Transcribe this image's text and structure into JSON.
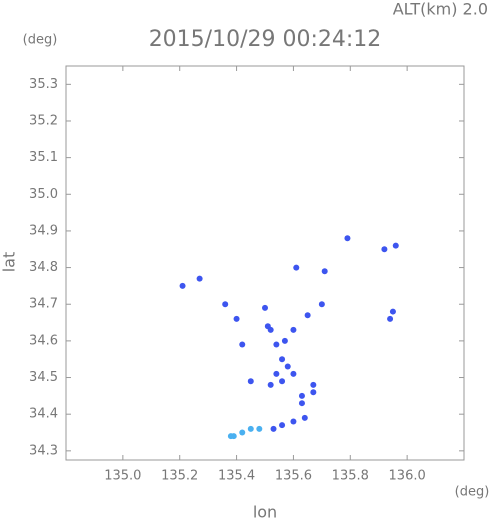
{
  "chart_data": {
    "type": "scatter",
    "title": "2015/10/29 00:24:12",
    "annotation": "ALT(km) 2.0",
    "y_unit": "(deg)",
    "x_unit": "(deg)",
    "xlabel": "lon",
    "ylabel": "lat",
    "xlim": [
      134.8,
      136.2
    ],
    "ylim": [
      34.275,
      35.35
    ],
    "xticks": [
      {
        "value": 135,
        "label": "135.0"
      },
      135.2,
      135.4,
      135.6,
      135.8,
      {
        "value": 136,
        "label": "136.0"
      }
    ],
    "yticks": [
      34.3,
      34.4,
      34.5,
      34.6,
      34.7,
      34.8,
      34.9,
      {
        "value": 35,
        "label": "35.0"
      },
      35.1,
      35.2,
      35.3
    ],
    "grid": false,
    "series": [
      {
        "color": "#3d55ef",
        "x": [
          135.21,
          135.27,
          135.36,
          135.4,
          135.42,
          135.5,
          135.51,
          135.52,
          135.54,
          135.57,
          135.6,
          135.65,
          135.61,
          135.7,
          135.71,
          135.79,
          135.92,
          135.96,
          135.94,
          135.95,
          135.56,
          135.58,
          135.54,
          135.56,
          135.6,
          135.45,
          135.52,
          135.67,
          135.67,
          135.63,
          135.63,
          135.64,
          135.6,
          135.56,
          135.53
        ],
        "y": [
          34.75,
          34.77,
          34.7,
          34.66,
          34.59,
          34.69,
          34.64,
          34.63,
          34.59,
          34.6,
          34.63,
          34.67,
          34.8,
          34.7,
          34.79,
          34.88,
          34.85,
          34.86,
          34.66,
          34.68,
          34.55,
          34.53,
          34.51,
          34.49,
          34.51,
          34.49,
          34.48,
          34.48,
          34.46,
          34.45,
          34.43,
          34.39,
          34.38,
          34.37,
          34.36
        ]
      },
      {
        "color": "#4ab0f0",
        "x": [
          135.38,
          135.39,
          135.42,
          135.45,
          135.48
        ],
        "y": [
          34.34,
          34.34,
          34.35,
          34.36,
          34.36
        ]
      }
    ]
  }
}
